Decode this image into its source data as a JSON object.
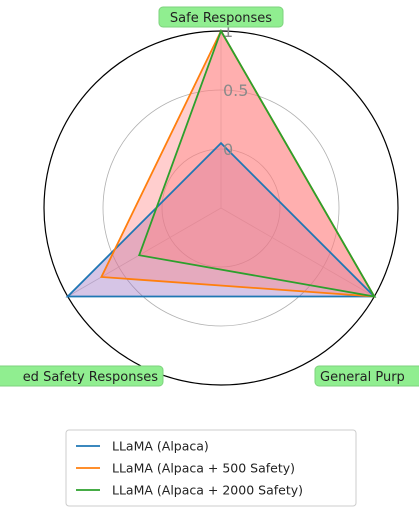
{
  "chart_data": {
    "type": "radar",
    "axes": [
      "Safe Responses",
      "General Purpose",
      "Unbiased Safety Responses"
    ],
    "axis_display_labels": [
      "Safe Responses",
      "General Purp",
      "ed Safety Responses"
    ],
    "r_ticks": [
      {
        "value": 0,
        "label": "0"
      },
      {
        "value": 0.5,
        "label": "0.5"
      },
      {
        "value": 1,
        "label": "1"
      }
    ],
    "r_range": [
      -0.5,
      1
    ],
    "series": [
      {
        "name": "LLaMA (Alpaca)",
        "color": "#1f77b4",
        "fill": "#9467bd",
        "values": [
          0.05,
          1.0,
          1.0
        ]
      },
      {
        "name": "LLaMA (Alpaca + 500 Safety)",
        "color": "#ff7f0e",
        "fill": "#ff7f7f",
        "values": [
          1.0,
          1.0,
          0.67
        ]
      },
      {
        "name": "LLaMA (Alpaca + 2000 Safety)",
        "color": "#2ca02c",
        "fill": "#ff7f7f",
        "values": [
          1.0,
          1.0,
          0.3
        ]
      }
    ],
    "label_box_color": "#90ee90",
    "legend_position": "bottom"
  }
}
